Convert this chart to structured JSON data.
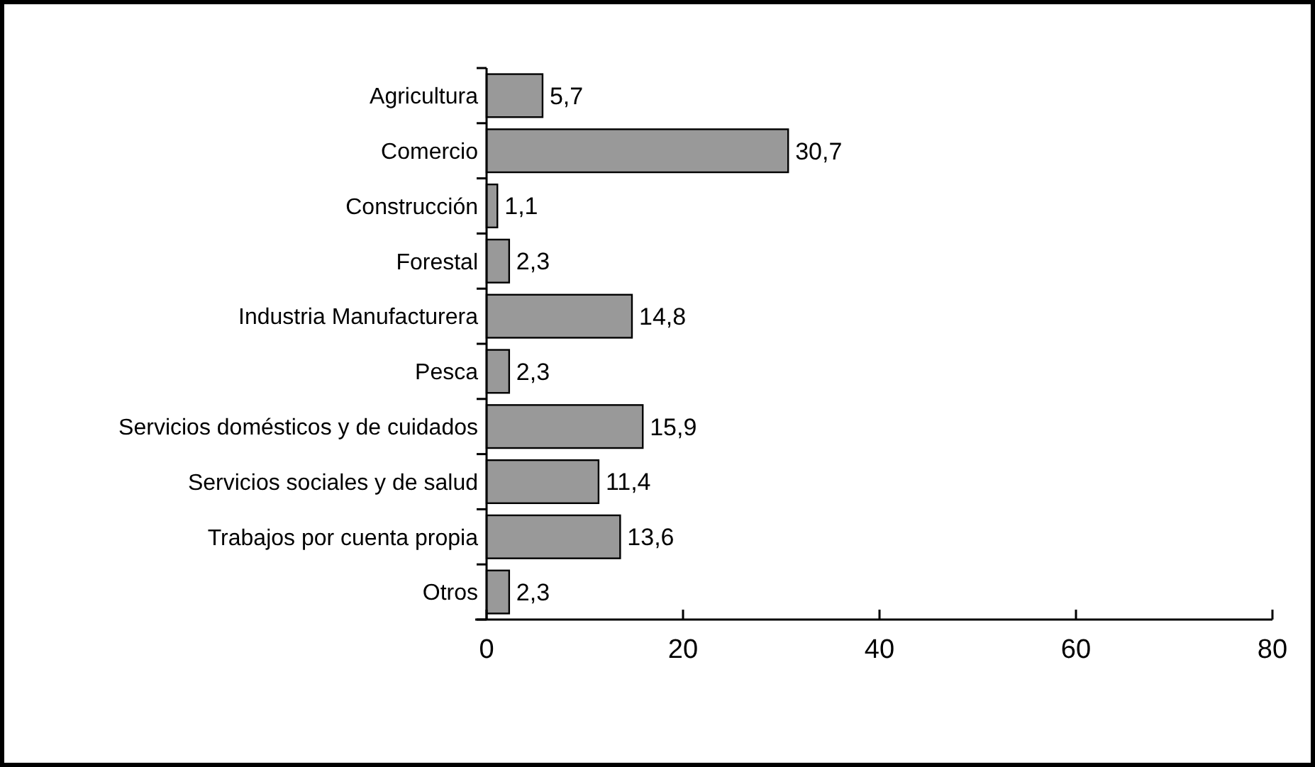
{
  "chart_data": {
    "type": "bar",
    "orientation": "horizontal",
    "categories": [
      "Agricultura",
      "Comercio",
      "Construcción",
      "Forestal",
      "Industria Manufacturera",
      "Pesca",
      "Servicios domésticos y de cuidados",
      "Servicios sociales y de salud",
      "Trabajos por cuenta propia",
      "Otros"
    ],
    "values": [
      5.7,
      30.7,
      1.1,
      2.3,
      14.8,
      2.3,
      15.9,
      11.4,
      13.6,
      2.3
    ],
    "value_labels": [
      "5,7",
      "30,7",
      "1,1",
      "2,3",
      "14,8",
      "2,3",
      "15,9",
      "11,4",
      "13,6",
      "2,3"
    ],
    "color": "#999999",
    "xlim": [
      0,
      80
    ],
    "xticks": [
      0,
      20,
      40,
      60,
      80
    ]
  }
}
